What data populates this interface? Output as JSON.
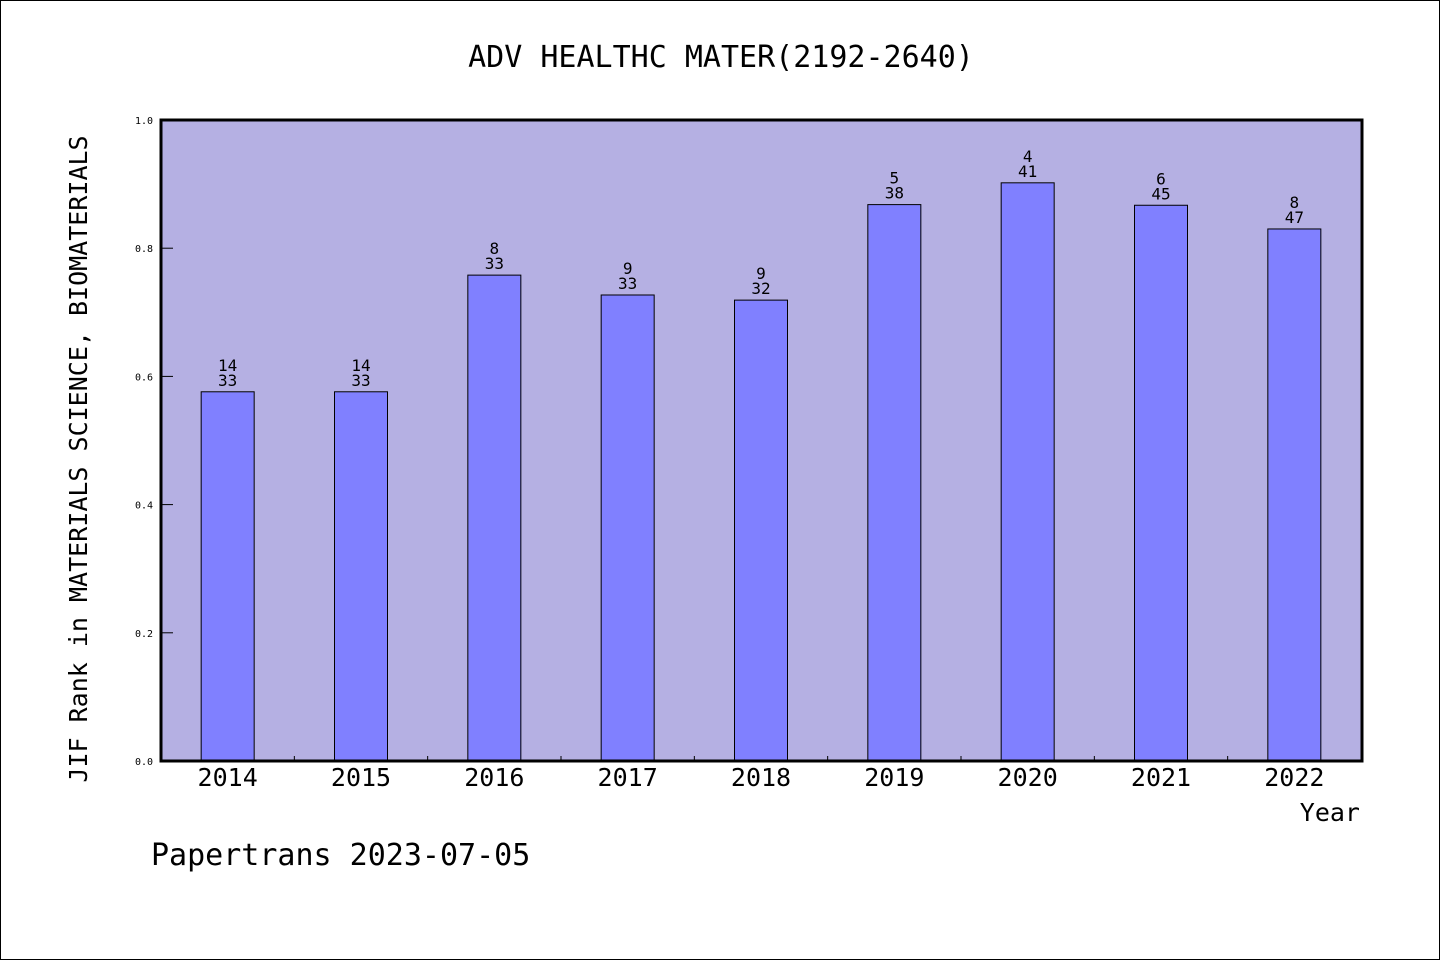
{
  "chart_data": {
    "type": "bar",
    "title": "ADV HEALTHC MATER(2192-2640)",
    "xlabel": "Year",
    "ylabel": "JIF Rank in MATERIALS SCIENCE, BIOMATERIALS",
    "ylim": [
      0,
      1
    ],
    "yticks": [
      "0.0",
      "0.2",
      "0.4",
      "0.6",
      "0.8",
      "1.0"
    ],
    "categories": [
      "2014",
      "2015",
      "2016",
      "2017",
      "2018",
      "2019",
      "2020",
      "2021",
      "2022"
    ],
    "values": [
      0.576,
      0.576,
      0.758,
      0.727,
      0.719,
      0.868,
      0.902,
      0.867,
      0.83
    ],
    "rank": [
      "14",
      "14",
      "8",
      "9",
      "9",
      "5",
      "4",
      "6",
      "8"
    ],
    "total": [
      "33",
      "33",
      "33",
      "33",
      "32",
      "38",
      "41",
      "45",
      "47"
    ],
    "grid": false,
    "legend": "none",
    "colors": {
      "plot_background": "#b5b0e3",
      "bar_fill": "#8080ff",
      "bar_stroke": "#000000"
    }
  },
  "footer": "Papertrans 2023-07-05"
}
